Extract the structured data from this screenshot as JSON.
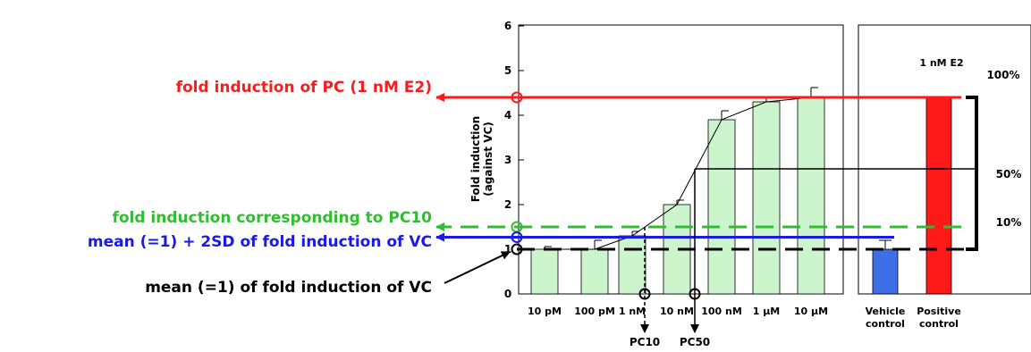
{
  "chart_data": {
    "type": "bar",
    "ylabel_line1": "Fold induction",
    "ylabel_line2": "(against VC)",
    "ylim": [
      0,
      6
    ],
    "yticks": [
      "0",
      "1",
      "2",
      "3",
      "4",
      "5",
      "6"
    ],
    "categories": [
      "10 pM",
      "100 pM",
      "1 nM",
      "10 nM",
      "100 nM",
      "1 μM",
      "10 μM"
    ],
    "values": [
      1.0,
      1.0,
      1.3,
      2.0,
      3.9,
      4.3,
      4.4
    ],
    "errors": [
      0.06,
      0.2,
      0.1,
      0.1,
      0.2,
      0.08,
      0.22
    ],
    "control_categories_line1": [
      "Vehicle",
      "Positive"
    ],
    "control_categories_line2": [
      "control",
      "control"
    ],
    "control_values": [
      1.0,
      4.4
    ],
    "control_errors": [
      0.2,
      0
    ],
    "control_colors": [
      "#3f6fe6",
      "#ff1a1a"
    ],
    "bar_color": "#cdf5cd",
    "pc_label": "1 nM E2",
    "levels": {
      "pc": 4.4,
      "pc10": 1.5,
      "vc_2sd": 1.27,
      "vc_mean": 1.0,
      "pc50": 2.8
    },
    "percent_labels": [
      "100%",
      "50%",
      "10%"
    ],
    "annotations": {
      "pc": "fold induction of PC (1 nM E2)",
      "pc10": "fold induction corresponding to PC10",
      "sd": "mean (=1) + 2SD of fold induction of VC",
      "mean": "mean (=1) of fold induction of VC"
    },
    "annotation_colors": {
      "pc": "#ff1a1a",
      "pc10": "#33bb33",
      "sd": "#1a1ae6",
      "mean": "#000000"
    },
    "pc_markers": [
      "PC10",
      "PC50"
    ]
  }
}
